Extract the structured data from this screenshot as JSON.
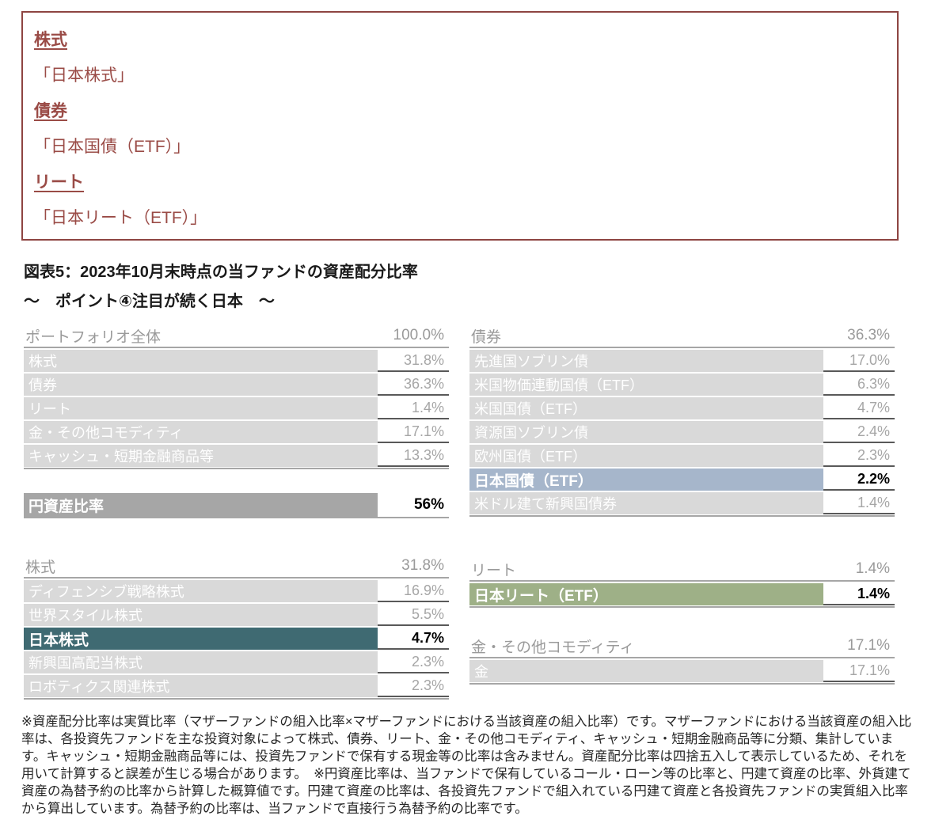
{
  "colors": {
    "maroon": "#8E4542",
    "highlight_teal": "#3F6A72",
    "highlight_blue": "#A6B6CB",
    "highlight_green": "#9EB087",
    "row_label_gray": "#D9D9D9",
    "yen_row_gray": "#A6A6A6",
    "value_border_dark": "#595959"
  },
  "highlight_box": {
    "sections": [
      {
        "heading": "株式",
        "item": "「日本株式」"
      },
      {
        "heading": "債券",
        "item": "「日本国債（ETF）」"
      },
      {
        "heading": "リート",
        "item": "「日本リート（ETF）」"
      }
    ]
  },
  "figure": {
    "title": "図表5：2023年10月末時点の当ファンドの資産配分比率",
    "subtitle": "～　ポイント④注目が続く日本　～"
  },
  "tables": {
    "portfolio": {
      "header": {
        "label": "ポートフォリオ全体",
        "value": "100.0%"
      },
      "rows": [
        {
          "label": "株式",
          "value": "31.8%"
        },
        {
          "label": "債券",
          "value": "36.3%"
        },
        {
          "label": "リート",
          "value": "1.4%"
        },
        {
          "label": "金・その他コモディティ",
          "value": "17.1%"
        },
        {
          "label": "キャッシュ・短期金融商品等",
          "value": "13.3%"
        }
      ]
    },
    "yen_ratio": {
      "label": "円資産比率",
      "value": "56%"
    },
    "equity": {
      "header": {
        "label": "株式",
        "value": "31.8%"
      },
      "rows": [
        {
          "label": "ディフェンシブ戦略株式",
          "value": "16.9%"
        },
        {
          "label": "世界スタイル株式",
          "value": "5.5%"
        },
        {
          "label": "日本株式",
          "value": "4.7%",
          "highlight": "teal"
        },
        {
          "label": "新興国高配当株式",
          "value": "2.3%"
        },
        {
          "label": "ロボティクス関連株式",
          "value": "2.3%"
        }
      ]
    },
    "bonds": {
      "header": {
        "label": "債券",
        "value": "36.3%"
      },
      "rows": [
        {
          "label": "先進国ソブリン債",
          "value": "17.0%"
        },
        {
          "label": "米国物価連動国債（ETF）",
          "value": "6.3%"
        },
        {
          "label": "米国国債（ETF）",
          "value": "4.7%"
        },
        {
          "label": "資源国ソブリン債",
          "value": "2.4%"
        },
        {
          "label": "欧州国債（ETF）",
          "value": "2.3%"
        },
        {
          "label": "日本国債（ETF）",
          "value": "2.2%",
          "highlight": "blue"
        },
        {
          "label": "米ドル建て新興国債券",
          "value": "1.4%"
        }
      ]
    },
    "reit": {
      "header": {
        "label": "リート",
        "value": "1.4%"
      },
      "rows": [
        {
          "label": "日本リート（ETF）",
          "value": "1.4%",
          "highlight": "green"
        }
      ]
    },
    "gold": {
      "header": {
        "label": "金・その他コモディティ",
        "value": "17.1%"
      },
      "rows": [
        {
          "label": "金",
          "value": "17.1%"
        }
      ]
    }
  },
  "footnote": "※資産配分比率は実質比率（マザーファンドの組入比率×マザーファンドにおける当該資産の組入比率）です。マザーファンドにおける当該資産の組入比率は、各投資先ファンドを主な投資対象によって株式、債券、リート、金・その他コモディティ、キャッシュ・短期金融商品等に分類、集計しています。キャッシュ・短期金融商品等には、投資先ファンドで保有する現金等の比率は含みません。資産配分比率は四捨五入して表示しているため、それを用いて計算すると誤差が生じる場合があります。　※円資産比率は、当ファンドで保有しているコール・ローン等の比率と、円建て資産の比率、外貨建て資産の為替予約の比率から計算した概算値です。円建て資産の比率は、各投資先ファンドで組入れている円建て資産と各投資先ファンドの実質組入比率から算出しています。為替予約の比率は、当ファンドで直接行う為替予約の比率です。"
}
